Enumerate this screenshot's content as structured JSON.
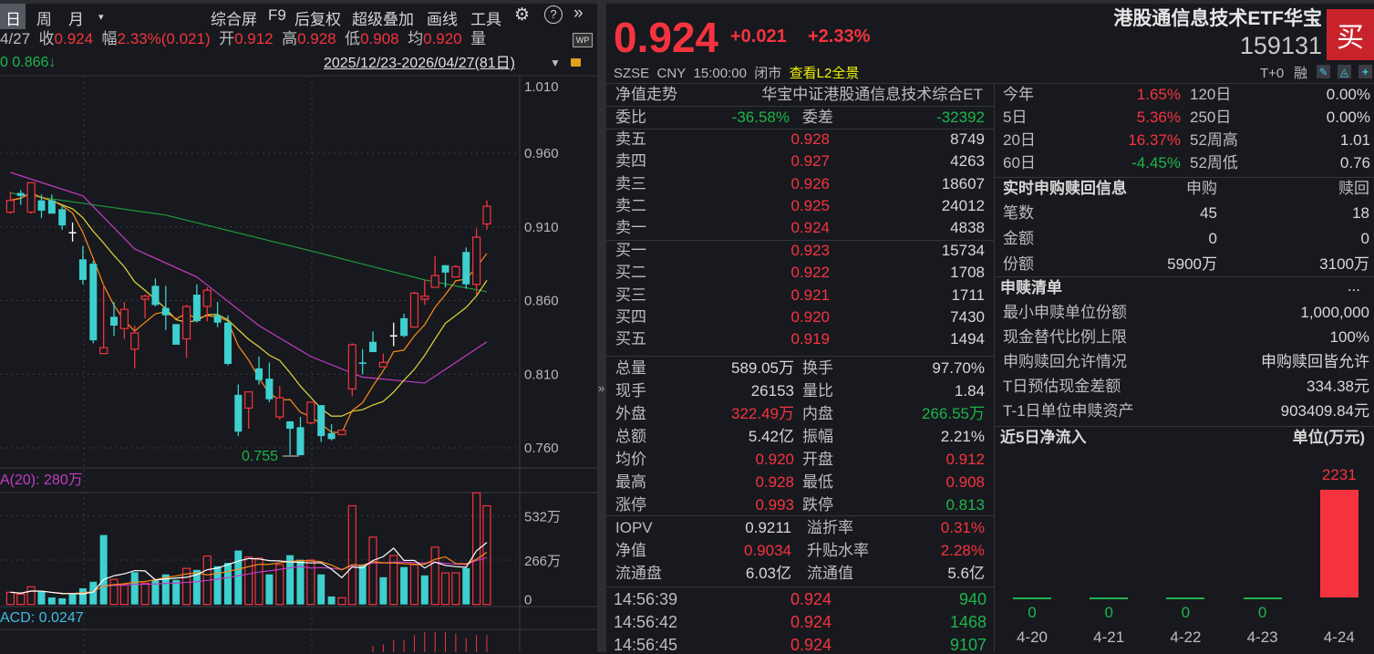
{
  "colors": {
    "up": "#f5333f",
    "down": "#1fb44b",
    "candle_down": "#3ecfcf",
    "ma5": "#ff8c1a",
    "ma10": "#e5d93a",
    "ma20": "#c43cc4",
    "ma60": "#1f9a3c",
    "bg": "#17191e"
  },
  "toolbar": {
    "periods": [
      "日",
      "周",
      "月"
    ],
    "dropdown_icon": "caret-down-icon",
    "items": [
      "综合屏",
      "F9",
      "后复权",
      "超级叠加",
      "画线",
      "工具"
    ],
    "icons": [
      "gear-icon",
      "help-icon",
      "double-chevron-right-icon"
    ]
  },
  "quote_bar": {
    "date": "4/27",
    "close_label": "收",
    "close": "0.924",
    "change_label": "幅",
    "change": "2.33%(0.021)",
    "open_label": "开",
    "open": "0.912",
    "high_label": "高",
    "high": "0.928",
    "low_label": "低",
    "low": "0.908",
    "avg_label": "均",
    "avg": "0.920",
    "vol_label": "量",
    "wp_badge": "WP"
  },
  "ma_bar": {
    "prefix": "0",
    "ma60_value": "0.866↓",
    "range": "2025/12/23-2026/04/27(81日)"
  },
  "chart_data": {
    "type": "candlestick",
    "price_axis": {
      "ticks": [
        "1.010",
        "0.960",
        "0.910",
        "0.860",
        "0.810",
        "0.760"
      ],
      "ylim": [
        0.755,
        1.01
      ]
    },
    "low_marker": "0.755",
    "candles": [
      [
        0.92,
        0.934,
        0.919,
        0.928
      ],
      [
        0.933,
        0.935,
        0.925,
        0.931
      ],
      [
        0.92,
        0.94,
        0.919,
        0.94
      ],
      [
        0.928,
        0.932,
        0.916,
        0.921
      ],
      [
        0.928,
        0.932,
        0.919,
        0.919
      ],
      [
        0.922,
        0.925,
        0.908,
        0.911
      ],
      [
        0.906,
        0.913,
        0.9,
        0.906
      ],
      [
        0.888,
        0.897,
        0.871,
        0.874
      ],
      [
        0.885,
        0.887,
        0.831,
        0.833
      ],
      [
        0.824,
        0.871,
        0.824,
        0.828
      ],
      [
        0.849,
        0.859,
        0.836,
        0.843
      ],
      [
        0.841,
        0.859,
        0.834,
        0.854
      ],
      [
        0.827,
        0.843,
        0.814,
        0.838
      ],
      [
        0.861,
        0.864,
        0.848,
        0.863
      ],
      [
        0.87,
        0.875,
        0.856,
        0.857
      ],
      [
        0.855,
        0.87,
        0.84,
        0.85
      ],
      [
        0.844,
        0.844,
        0.83,
        0.83
      ],
      [
        0.834,
        0.857,
        0.821,
        0.856
      ],
      [
        0.864,
        0.871,
        0.845,
        0.846
      ],
      [
        0.856,
        0.869,
        0.846,
        0.867
      ],
      [
        0.85,
        0.859,
        0.842,
        0.845
      ],
      [
        0.845,
        0.85,
        0.816,
        0.817
      ],
      [
        0.796,
        0.803,
        0.768,
        0.771
      ],
      [
        0.787,
        0.798,
        0.773,
        0.798
      ],
      [
        0.814,
        0.822,
        0.803,
        0.806
      ],
      [
        0.807,
        0.818,
        0.791,
        0.793
      ],
      [
        0.781,
        0.802,
        0.779,
        0.794
      ],
      [
        0.778,
        0.778,
        0.755,
        0.773
      ],
      [
        0.774,
        0.781,
        0.755,
        0.755
      ],
      [
        0.777,
        0.791,
        0.776,
        0.791
      ],
      [
        0.789,
        0.789,
        0.764,
        0.768
      ],
      [
        0.77,
        0.776,
        0.765,
        0.766
      ],
      [
        0.769,
        0.772,
        0.769,
        0.772
      ],
      [
        0.8,
        0.831,
        0.795,
        0.83
      ],
      [
        0.818,
        0.827,
        0.81,
        0.817
      ],
      [
        0.832,
        0.839,
        0.825,
        0.825
      ],
      [
        0.815,
        0.824,
        0.815,
        0.818
      ],
      [
        0.836,
        0.845,
        0.829,
        0.836
      ],
      [
        0.848,
        0.851,
        0.835,
        0.836
      ],
      [
        0.842,
        0.866,
        0.842,
        0.865
      ],
      [
        0.861,
        0.874,
        0.857,
        0.863
      ],
      [
        0.869,
        0.89,
        0.869,
        0.877
      ],
      [
        0.884,
        0.884,
        0.869,
        0.879
      ],
      [
        0.876,
        0.884,
        0.876,
        0.883
      ],
      [
        0.893,
        0.896,
        0.868,
        0.871
      ],
      [
        0.871,
        0.909,
        0.864,
        0.903
      ],
      [
        0.912,
        0.928,
        0.908,
        0.924
      ]
    ],
    "ma_purple": [
      [
        1,
        0.947
      ],
      [
        8,
        0.931
      ],
      [
        13,
        0.895
      ],
      [
        19,
        0.876
      ],
      [
        25,
        0.843
      ],
      [
        30,
        0.822
      ],
      [
        35,
        0.808
      ],
      [
        41,
        0.804
      ],
      [
        47,
        0.832
      ]
    ],
    "ma_green": [
      [
        1,
        0.933
      ],
      [
        16,
        0.918
      ],
      [
        31,
        0.892
      ],
      [
        41,
        0.874
      ],
      [
        47,
        0.866
      ]
    ],
    "volume": {
      "label": "A(20): 280万",
      "ticks": [
        "532万",
        "266万",
        "0"
      ],
      "values_wan": [
        73,
        62,
        106,
        79,
        42,
        37,
        61,
        97,
        136,
        416,
        150,
        119,
        193,
        128,
        143,
        180,
        147,
        216,
        207,
        290,
        229,
        249,
        323,
        284,
        277,
        180,
        238,
        295,
        268,
        266,
        180,
        48,
        40,
        591,
        235,
        403,
        163,
        293,
        224,
        238,
        174,
        343,
        189,
        189,
        218,
        668,
        591
      ],
      "up": [
        1,
        1,
        1,
        0,
        0,
        0,
        0,
        0,
        0,
        0,
        1,
        1,
        0,
        1,
        0,
        0,
        0,
        1,
        0,
        1,
        0,
        0,
        0,
        1,
        1,
        0,
        1,
        0,
        0,
        1,
        0,
        0,
        1,
        1,
        0,
        1,
        0,
        1,
        0,
        1,
        0,
        1,
        1,
        1,
        0,
        1,
        1
      ]
    },
    "macd": {
      "label": "ACD: 0.0247",
      "hist_from_candle": 36,
      "hist": [
        0.004,
        0.005,
        0.008,
        0.008,
        0.011,
        0.013,
        0.013,
        0.013,
        0.012,
        0.009,
        0.011,
        0.011
      ]
    }
  },
  "header": {
    "price": "0.924",
    "change": "+0.021",
    "change_pct": "+2.33%",
    "name": "港股通信息技术ETF华宝",
    "code": "159131",
    "buy_label": "买",
    "exchange": "SZSE",
    "currency": "CNY",
    "time": "15:00:00",
    "status": "闭市",
    "l2_link": "查看L2全景",
    "tplus": "T+0",
    "margin": "融",
    "icons": [
      "pencil-icon",
      "bell-icon",
      "plus-icon"
    ]
  },
  "left_panel": {
    "nav_row": {
      "label": "净值走势",
      "index": "华宝中证港股通信息技术综合ET"
    },
    "ratio_row": {
      "label": "委比",
      "value": "-36.58%",
      "label2": "委差",
      "value2": "-32392",
      "color": "down"
    },
    "asks": [
      {
        "label": "卖五",
        "price": "0.928",
        "vol": "8749"
      },
      {
        "label": "卖四",
        "price": "0.927",
        "vol": "4263"
      },
      {
        "label": "卖三",
        "price": "0.926",
        "vol": "18607"
      },
      {
        "label": "卖二",
        "price": "0.925",
        "vol": "24012"
      },
      {
        "label": "卖一",
        "price": "0.924",
        "vol": "4838"
      }
    ],
    "bids": [
      {
        "label": "买一",
        "price": "0.923",
        "vol": "15734"
      },
      {
        "label": "买二",
        "price": "0.922",
        "vol": "1708"
      },
      {
        "label": "买三",
        "price": "0.921",
        "vol": "1711"
      },
      {
        "label": "买四",
        "price": "0.920",
        "vol": "7430"
      },
      {
        "label": "买五",
        "price": "0.919",
        "vol": "1494"
      }
    ],
    "stats": [
      {
        "l1": "总量",
        "v1": "589.05万",
        "c1": "flat",
        "l2": "换手",
        "v2": "97.70%",
        "c2": "flat"
      },
      {
        "l1": "现手",
        "v1": "26153",
        "c1": "flat",
        "l2": "量比",
        "v2": "1.84",
        "c2": "flat"
      },
      {
        "l1": "外盘",
        "v1": "322.49万",
        "c1": "up",
        "l2": "内盘",
        "v2": "266.55万",
        "c2": "down"
      },
      {
        "l1": "总额",
        "v1": "5.42亿",
        "c1": "flat",
        "l2": "振幅",
        "v2": "2.21%",
        "c2": "flat"
      },
      {
        "l1": "均价",
        "v1": "0.920",
        "c1": "up",
        "l2": "开盘",
        "v2": "0.912",
        "c2": "up"
      },
      {
        "l1": "最高",
        "v1": "0.928",
        "c1": "up",
        "l2": "最低",
        "v2": "0.908",
        "c2": "up"
      },
      {
        "l1": "涨停",
        "v1": "0.993",
        "c1": "up",
        "l2": "跌停",
        "v2": "0.813",
        "c2": "down"
      }
    ],
    "etf": [
      {
        "l1": "IOPV",
        "v1": "0.9211",
        "c1": "flat",
        "l2": "溢折率",
        "v2": "0.31%",
        "c2": "up"
      },
      {
        "l1": "净值",
        "v1": "0.9034",
        "c1": "up",
        "l2": "升贴水率",
        "v2": "2.28%",
        "c2": "up"
      },
      {
        "l1": "流通盘",
        "v1": "6.03亿",
        "c1": "flat",
        "l2": "流通值",
        "v2": "5.6亿",
        "c2": "flat"
      }
    ],
    "trades": [
      {
        "time": "14:56:39",
        "price": "0.924",
        "vol": "940"
      },
      {
        "time": "14:56:42",
        "price": "0.924",
        "vol": "1468"
      },
      {
        "time": "14:56:45",
        "price": "0.924",
        "vol": "9107"
      }
    ],
    "collapse_icon": "double-chevron-right-icon"
  },
  "right_panel": {
    "returns": [
      {
        "l1": "今年",
        "v1": "1.65%",
        "c1": "up",
        "l2": "120日",
        "v2": "0.00%"
      },
      {
        "l1": "5日",
        "v1": "5.36%",
        "c1": "up",
        "l2": "250日",
        "v2": "0.00%"
      },
      {
        "l1": "20日",
        "v1": "16.37%",
        "c1": "up",
        "l2": "52周高",
        "v2": "1.01"
      },
      {
        "l1": "60日",
        "v1": "-4.45%",
        "c1": "down",
        "l2": "52周低",
        "v2": "0.76"
      }
    ],
    "creation": {
      "title": "实时申购赎回信息",
      "col1": "申购",
      "col2": "赎回",
      "rows": [
        {
          "label": "笔数",
          "v1": "45",
          "v2": "18"
        },
        {
          "label": "金额",
          "v1": "0",
          "v2": "0"
        },
        {
          "label": "份额",
          "v1": "5900万",
          "v2": "3100万"
        }
      ]
    },
    "pcf": {
      "title": "申赎清单",
      "more": "...",
      "rows": [
        {
          "label": "最小申赎单位份额",
          "value": "1,000,000"
        },
        {
          "label": "现金替代比例上限",
          "value": "100%"
        },
        {
          "label": "申购赎回允许情况",
          "value": "申购赎回皆允许"
        },
        {
          "label": "T日预估现金差额",
          "value": "334.38元"
        },
        {
          "label": "T-1日单位申赎资产",
          "value": "903409.84元"
        }
      ]
    },
    "inflow": {
      "title": "近5日净流入",
      "unit": "单位(万元)",
      "chart_data": {
        "type": "bar",
        "categories": [
          "4-20",
          "4-21",
          "4-22",
          "4-23",
          "4-24"
        ],
        "values": [
          0,
          0,
          0,
          0,
          2231
        ],
        "labels": [
          "0",
          "0",
          "0",
          "0",
          "2231"
        ]
      }
    }
  }
}
